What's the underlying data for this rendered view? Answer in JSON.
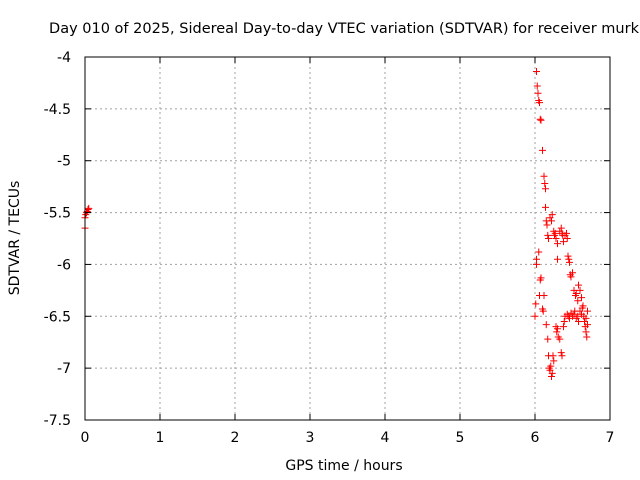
{
  "chart_data": {
    "type": "scatter",
    "title": "Day 010 of 2025, Sidereal Day-to-day VTEC variation (SDTVAR) for receiver murk",
    "xlabel": "GPS time / hours",
    "ylabel": "SDTVAR / TECUs",
    "xlim": [
      0,
      7
    ],
    "ylim": [
      -7.5,
      -4
    ],
    "x_ticks": [
      {
        "value": 0,
        "label": "0"
      },
      {
        "value": 1,
        "label": "1"
      },
      {
        "value": 2,
        "label": "2"
      },
      {
        "value": 3,
        "label": "3"
      },
      {
        "value": 4,
        "label": "4"
      },
      {
        "value": 5,
        "label": "5"
      },
      {
        "value": 6,
        "label": "6"
      },
      {
        "value": 7,
        "label": "7"
      }
    ],
    "y_ticks": [
      {
        "value": -4,
        "label": "-4"
      },
      {
        "value": -4.5,
        "label": "-4.5"
      },
      {
        "value": -5,
        "label": "-5"
      },
      {
        "value": -5.5,
        "label": "-5.5"
      },
      {
        "value": -6,
        "label": "-6"
      },
      {
        "value": -6.5,
        "label": "-6.5"
      },
      {
        "value": -7,
        "label": "-7"
      },
      {
        "value": -7.5,
        "label": "-7.5"
      }
    ],
    "grid": true,
    "marker": "plus",
    "color": "#ff0000",
    "series": [
      {
        "name": "SDTVAR",
        "points": [
          [
            0.0,
            -5.65
          ],
          [
            0.0,
            -5.55
          ],
          [
            0.01,
            -5.52
          ],
          [
            0.02,
            -5.5
          ],
          [
            0.03,
            -5.49
          ],
          [
            0.04,
            -5.47
          ],
          [
            0.05,
            -5.46
          ],
          [
            6.0,
            -6.5
          ],
          [
            6.01,
            -6.38
          ],
          [
            6.02,
            -6.0
          ],
          [
            6.02,
            -5.95
          ],
          [
            6.02,
            -4.14
          ],
          [
            6.03,
            -4.28
          ],
          [
            6.04,
            -4.35
          ],
          [
            6.05,
            -4.42
          ],
          [
            6.06,
            -4.44
          ],
          [
            6.07,
            -4.6
          ],
          [
            6.08,
            -4.61
          ],
          [
            6.05,
            -5.88
          ],
          [
            6.06,
            -6.3
          ],
          [
            6.07,
            -6.15
          ],
          [
            6.08,
            -6.13
          ],
          [
            6.1,
            -4.9
          ],
          [
            6.1,
            -6.43
          ],
          [
            6.11,
            -6.45
          ],
          [
            6.12,
            -6.3
          ],
          [
            6.12,
            -5.15
          ],
          [
            6.13,
            -5.22
          ],
          [
            6.14,
            -5.27
          ],
          [
            6.14,
            -5.45
          ],
          [
            6.15,
            -5.58
          ],
          [
            6.16,
            -5.62
          ],
          [
            6.17,
            -5.72
          ],
          [
            6.18,
            -5.75
          ],
          [
            6.15,
            -6.58
          ],
          [
            6.17,
            -6.72
          ],
          [
            6.18,
            -6.88
          ],
          [
            6.19,
            -7.0
          ],
          [
            6.2,
            -7.02
          ],
          [
            6.21,
            -6.98
          ],
          [
            6.22,
            -7.08
          ],
          [
            6.23,
            -7.05
          ],
          [
            6.24,
            -6.88
          ],
          [
            6.25,
            -6.93
          ],
          [
            6.2,
            -5.55
          ],
          [
            6.22,
            -5.58
          ],
          [
            6.23,
            -5.52
          ],
          [
            6.25,
            -5.68
          ],
          [
            6.26,
            -5.72
          ],
          [
            6.27,
            -5.7
          ],
          [
            6.28,
            -5.75
          ],
          [
            6.3,
            -5.8
          ],
          [
            6.3,
            -5.95
          ],
          [
            6.28,
            -6.6
          ],
          [
            6.29,
            -6.65
          ],
          [
            6.3,
            -6.62
          ],
          [
            6.31,
            -6.7
          ],
          [
            6.33,
            -6.72
          ],
          [
            6.33,
            -5.68
          ],
          [
            6.35,
            -5.65
          ],
          [
            6.36,
            -5.7
          ],
          [
            6.37,
            -5.72
          ],
          [
            6.38,
            -5.78
          ],
          [
            6.35,
            -6.85
          ],
          [
            6.36,
            -6.88
          ],
          [
            6.38,
            -6.6
          ],
          [
            6.39,
            -6.55
          ],
          [
            6.4,
            -6.5
          ],
          [
            6.4,
            -5.72
          ],
          [
            6.42,
            -5.7
          ],
          [
            6.43,
            -5.75
          ],
          [
            6.43,
            -6.48
          ],
          [
            6.45,
            -6.5
          ],
          [
            6.46,
            -6.52
          ],
          [
            6.44,
            -5.92
          ],
          [
            6.45,
            -5.95
          ],
          [
            6.46,
            -5.98
          ],
          [
            6.47,
            -6.1
          ],
          [
            6.48,
            -6.12
          ],
          [
            6.5,
            -6.08
          ],
          [
            6.48,
            -6.47
          ],
          [
            6.5,
            -6.5
          ],
          [
            6.52,
            -6.48
          ],
          [
            6.53,
            -6.45
          ],
          [
            6.52,
            -6.25
          ],
          [
            6.54,
            -6.3
          ],
          [
            6.55,
            -6.28
          ],
          [
            6.55,
            -6.52
          ],
          [
            6.57,
            -6.5
          ],
          [
            6.58,
            -6.55
          ],
          [
            6.57,
            -6.35
          ],
          [
            6.58,
            -6.2
          ],
          [
            6.6,
            -6.25
          ],
          [
            6.6,
            -6.45
          ],
          [
            6.62,
            -6.48
          ],
          [
            6.63,
            -6.42
          ],
          [
            6.62,
            -6.32
          ],
          [
            6.64,
            -6.4
          ],
          [
            6.65,
            -6.5
          ],
          [
            6.66,
            -6.55
          ],
          [
            6.67,
            -6.6
          ],
          [
            6.68,
            -6.65
          ],
          [
            6.69,
            -6.7
          ],
          [
            6.7,
            -6.45
          ],
          [
            6.68,
            -6.52
          ],
          [
            6.7,
            -6.58
          ]
        ]
      }
    ]
  }
}
